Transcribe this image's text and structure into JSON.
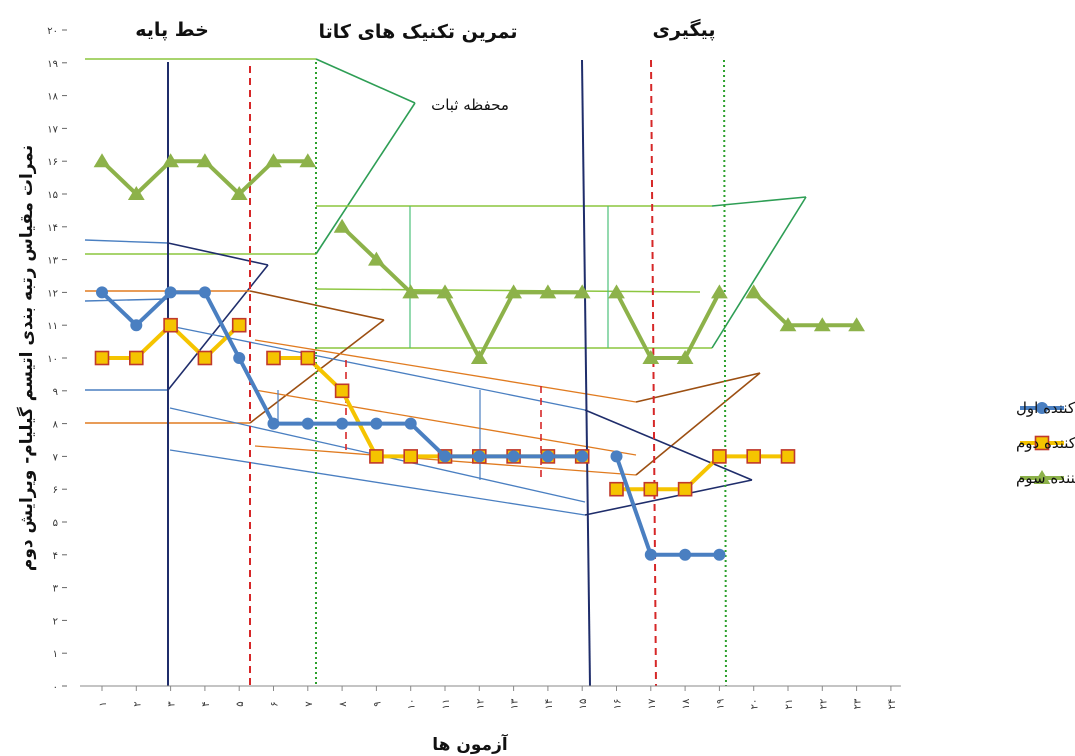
{
  "chart_data": {
    "type": "line",
    "title": "",
    "xlabel": "آزمون ها",
    "ylabel": "نمرات مقیاس رتبه بندی اتیسم گیلیام- ویرایش دوم",
    "ylim": [
      0,
      20
    ],
    "y_ticks": [
      "۰",
      "۱",
      "۲",
      "۳",
      "۴",
      "۵",
      "۶",
      "۷",
      "۸",
      "۹",
      "۱۰",
      "۱۱",
      "۱۲",
      "۱۳",
      "۱۴",
      "۱۵",
      "۱۶",
      "۱۷",
      "۱۸",
      "۱۹",
      "۲۰"
    ],
    "x_ticks": [
      "۱",
      "۲",
      "۳",
      "۴",
      "۵",
      "۶",
      "۷",
      "۸",
      "۹",
      "۱۰",
      "۱۱",
      "۱۲",
      "۱۳",
      "۱۴",
      "۱۵",
      "۱۶",
      "۱۷",
      "۱۸",
      "۱۹",
      "۲۰",
      "۲۱",
      "۲۲",
      "۲۳",
      "۲۴"
    ],
    "grid": false,
    "legend_position": "right",
    "phases": [
      {
        "label": "خط پایه"
      },
      {
        "label": "تمرین تکنیک های کاتا"
      },
      {
        "label": "پیگیری"
      }
    ],
    "annotations": [
      {
        "text": "محفظه ثبات"
      }
    ],
    "series": [
      {
        "name": "شرکت کننده اول",
        "color": "#4a7fc1",
        "marker": "circle",
        "segments": [
          {
            "x": [
              1,
              2,
              3,
              4,
              5,
              6,
              7,
              8,
              9,
              10,
              11,
              12,
              13,
              14,
              15
            ],
            "y": [
              12,
              11,
              12,
              12,
              10,
              8,
              8,
              8,
              8,
              8,
              7,
              7,
              7,
              7,
              7
            ]
          },
          {
            "x": [
              16,
              17,
              18,
              19
            ],
            "y": [
              7,
              4,
              4,
              4
            ]
          }
        ]
      },
      {
        "name": "شرکت کننده دوم",
        "color": "#f5c400",
        "marker": "square",
        "segments": [
          {
            "x": [
              1,
              2,
              3,
              4,
              5
            ],
            "y": [
              10,
              10,
              11,
              10,
              11
            ]
          },
          {
            "x": [
              6,
              7,
              8,
              9,
              10,
              11,
              12,
              13,
              14,
              15
            ],
            "y": [
              10,
              10,
              9,
              7,
              7,
              7,
              7,
              7,
              7,
              7
            ]
          },
          {
            "x": [
              16,
              17,
              18,
              19,
              20,
              21
            ],
            "y": [
              6,
              6,
              6,
              7,
              7,
              7
            ]
          }
        ]
      },
      {
        "name": "شرکت کننده سوم",
        "color": "#8db24a",
        "marker": "triangle",
        "segments": [
          {
            "x": [
              1,
              2,
              3,
              4,
              5,
              6,
              7
            ],
            "y": [
              16,
              15,
              16,
              16,
              15,
              16,
              16
            ]
          },
          {
            "x": [
              8,
              9,
              10,
              11,
              12,
              13,
              14,
              15
            ],
            "y": [
              14,
              13,
              12,
              12,
              10,
              12,
              12,
              12
            ]
          },
          {
            "x": [
              16,
              17,
              18,
              19
            ],
            "y": [
              12,
              10,
              10,
              12
            ]
          },
          {
            "x": [
              20,
              21,
              22,
              23
            ],
            "y": [
              12,
              11,
              11,
              11
            ]
          }
        ]
      }
    ]
  }
}
